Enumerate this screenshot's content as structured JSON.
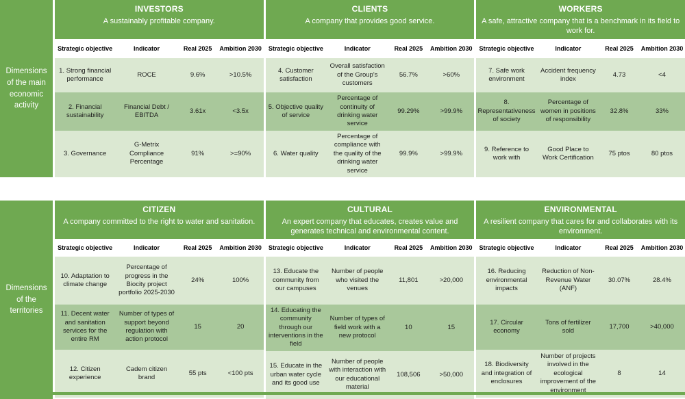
{
  "colors": {
    "header_green": "#6fa951",
    "row_light": "#dbe8d2",
    "row_medium": "#a9c89b"
  },
  "column_headers": [
    "Strategic objective",
    "Indicator",
    "Real 2025",
    "Ambition 2030"
  ],
  "sections": [
    {
      "sidebar_label": "Dimensions of the main economic activity",
      "groups": [
        {
          "title": "INVESTORS",
          "subtitle": "A sustainably profitable company.",
          "rows": [
            {
              "objective": "1. Strong financial performance",
              "indicator": "ROCE",
              "real": "9.6%",
              "ambition": ">10.5%"
            },
            {
              "objective": "2. Financial sustainability",
              "indicator": "Financial Debt / EBITDA",
              "real": "3.61x",
              "ambition": "<3.5x"
            },
            {
              "objective": "3. Governance",
              "indicator": "G-Metrix Compliance Percentage",
              "real": "91%",
              "ambition": ">=90%"
            }
          ]
        },
        {
          "title": "CLIENTS",
          "subtitle": "A company that provides good service.",
          "rows": [
            {
              "objective": "4. Customer satisfaction",
              "indicator": "Overall satisfaction of the Group's customers",
              "real": "56.7%",
              "ambition": ">60%"
            },
            {
              "objective": "5. Objective quality of service",
              "indicator": "Percentage of continuity of drinking water service",
              "real": "99.29%",
              "ambition": ">99.9%"
            },
            {
              "objective": "6. Water quality",
              "indicator": "Percentage of compliance with the quality of the drinking water service",
              "real": "99.9%",
              "ambition": ">99.9%"
            }
          ]
        },
        {
          "title": "WORKERS",
          "subtitle": "A safe, attractive company that is a benchmark in its field to work for.",
          "rows": [
            {
              "objective": "7. Safe work environment",
              "indicator": "Accident frequency index",
              "real": "4.73",
              "ambition": "<4"
            },
            {
              "objective": "8. Representativeness of society",
              "indicator": "Percentage of women in positions of responsibility",
              "real": "32.8%",
              "ambition": "33%"
            },
            {
              "objective": "9. Reference to work with",
              "indicator": "Good Place to Work Certification",
              "real": "75 ptos",
              "ambition": "80 ptos"
            }
          ]
        }
      ]
    },
    {
      "sidebar_label": "Dimensions of the territories",
      "groups": [
        {
          "title": "CITIZEN",
          "subtitle": "A company committed to the right to water and sanitation.",
          "rows": [
            {
              "objective": "10. Adaptation to climate change",
              "indicator": "Percentage of progress in the Biocity project portfolio 2025-2030",
              "real": "24%",
              "ambition": "100%"
            },
            {
              "objective": "11. Decent water and sanitation services for the entire RM",
              "indicator": "Number of types of support beyond regulation with action protocol",
              "real": "15",
              "ambition": "20"
            },
            {
              "objective": "12. Citizen experience",
              "indicator": "Cadem citizen brand",
              "real": "55 pts",
              "ambition": "<100 pts"
            }
          ]
        },
        {
          "title": "CULTURAL",
          "subtitle": "An expert company that educates, creates value and generates technical and environmental content.",
          "rows": [
            {
              "objective": "13. Educate the community from our campuses",
              "indicator": "Number of people who visited the venues",
              "real": "11,801",
              "ambition": ">20,000"
            },
            {
              "objective": "14. Educating the community through our interventions in the field",
              "indicator": "Number of types of field work with a new protocol",
              "real": "10",
              "ambition": "15"
            },
            {
              "objective": "15. Educate in the urban water cycle and its good use",
              "indicator": "Number of people with interaction with our educational material",
              "real": "108,506",
              "ambition": ">50,000"
            }
          ]
        },
        {
          "title": "ENVIRONMENTAL",
          "subtitle": "A resilient company that cares for and collaborates with its environment.",
          "rows": [
            {
              "objective": "16. Reducing environmental impacts",
              "indicator": "Reduction of Non-Revenue Water (ANF)",
              "real": "30.07%",
              "ambition": "28.4%"
            },
            {
              "objective": "17. Circular economy",
              "indicator": "Tons of fertilizer sold",
              "real": "17,700",
              "ambition": ">40,000"
            },
            {
              "objective": "18. Biodiversity and integration of enclosures",
              "indicator": "Number of projects involved in the ecological improvement of the environment",
              "real": "8",
              "ambition": "14"
            }
          ]
        }
      ]
    }
  ]
}
